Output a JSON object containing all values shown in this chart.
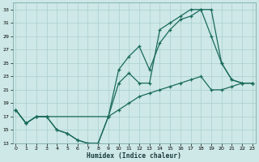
{
  "xlabel": "Humidex (Indice chaleur)",
  "background_color": "#cde8e6",
  "grid_color": "#aacfcf",
  "line_color": "#1a6b5a",
  "xlim": [
    0,
    23
  ],
  "ylim": [
    13,
    34
  ],
  "yticks": [
    13,
    15,
    17,
    19,
    21,
    23,
    25,
    27,
    29,
    31,
    33
  ],
  "xticks": [
    0,
    1,
    2,
    3,
    4,
    5,
    6,
    7,
    8,
    9,
    10,
    11,
    12,
    13,
    14,
    15,
    16,
    17,
    18,
    19,
    20,
    21,
    22,
    23
  ],
  "curve1_x": [
    0,
    1,
    2,
    3,
    4,
    5,
    6,
    7,
    8,
    9,
    10,
    11,
    12,
    13,
    14,
    15,
    16,
    17,
    18,
    19,
    20,
    21,
    22,
    23
  ],
  "curve1_y": [
    18,
    16,
    17,
    17,
    15,
    14.5,
    13.5,
    13,
    13,
    17,
    22,
    23.5,
    22,
    22,
    30,
    31,
    32,
    33,
    33,
    33,
    25,
    22.5,
    22,
    22
  ],
  "curve2_x": [
    0,
    1,
    2,
    3,
    4,
    5,
    6,
    7,
    8,
    9,
    10,
    11,
    12,
    13,
    14,
    15,
    16,
    17,
    18,
    19,
    20,
    21,
    22,
    23
  ],
  "curve2_y": [
    18,
    16,
    17,
    17,
    15,
    14.5,
    13.5,
    13,
    13,
    17,
    24,
    26,
    27.5,
    24,
    28,
    30,
    31.5,
    32,
    33,
    29,
    25,
    22.5,
    22,
    22
  ],
  "curve3_x": [
    0,
    1,
    2,
    3,
    9,
    10,
    11,
    12,
    13,
    14,
    15,
    16,
    17,
    18,
    19,
    20,
    21,
    22,
    23
  ],
  "curve3_y": [
    18,
    16,
    17,
    17,
    17,
    18,
    19,
    20,
    20.5,
    21,
    21.5,
    22,
    22.5,
    23,
    21,
    21,
    21.5,
    22,
    22
  ]
}
